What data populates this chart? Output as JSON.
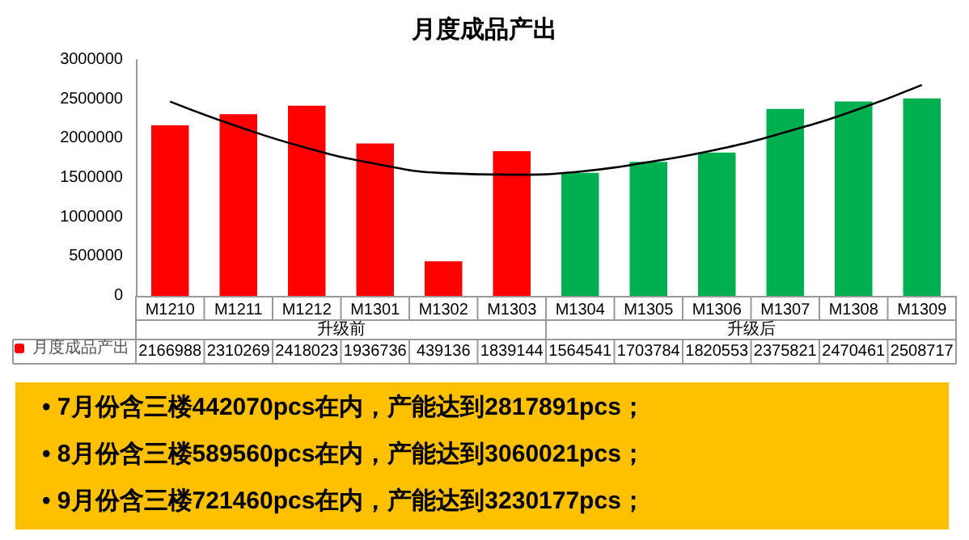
{
  "chart_data": {
    "type": "bar",
    "title": "月度成品产出",
    "categories": [
      "M1210",
      "M1211",
      "M1212",
      "M1301",
      "M1302",
      "M1303",
      "M1304",
      "M1305",
      "M1306",
      "M1307",
      "M1308",
      "M1309"
    ],
    "series": [
      {
        "name": "月度成品产出",
        "color": "#ff0000",
        "colors": [
          "#ff0000",
          "#ff0000",
          "#ff0000",
          "#ff0000",
          "#ff0000",
          "#ff0000",
          "#00b050",
          "#00b050",
          "#00b050",
          "#00b050",
          "#00b050",
          "#00b050"
        ],
        "values": [
          2166988,
          2310269,
          2418023,
          1936736,
          439136,
          1839144,
          1564541,
          1703784,
          1820553,
          2375821,
          2470461,
          2508717
        ],
        "value_labels": [
          "2166988",
          "2310269",
          "2418023",
          "1936736",
          "439136",
          "1839144",
          "1564541",
          "1703784",
          "1820553",
          "2375821",
          "2470461",
          "2508717"
        ]
      },
      {
        "type": "line",
        "color": "#000000",
        "marker": "none",
        "x": [
          "M1210",
          "M1211",
          "M1212",
          "M1301",
          "M1302",
          "M1303",
          "M1304",
          "M1305",
          "M1306",
          "M1307",
          "M1308",
          "M1309"
        ],
        "values": [
          2470000,
          2150000,
          1880000,
          1680000,
          1560000,
          1540000,
          1580000,
          1700000,
          1860000,
          2080000,
          2350000,
          2680000
        ]
      }
    ],
    "ylim": [
      0,
      3000000
    ],
    "yticks": [
      0,
      500000,
      1000000,
      1500000,
      2000000,
      2500000,
      3000000
    ],
    "grid": false,
    "legend": "bottom",
    "annotations": [
      "升级前",
      "升级后",
      "• 7月份含三楼442070pcs在内，产能达到2817891pcs；",
      "• 8月份含三楼589560pcs在内，产能达到3060021pcs；",
      "• 9月份含三楼721460pcs在内，产能达到3230177pcs；"
    ]
  }
}
